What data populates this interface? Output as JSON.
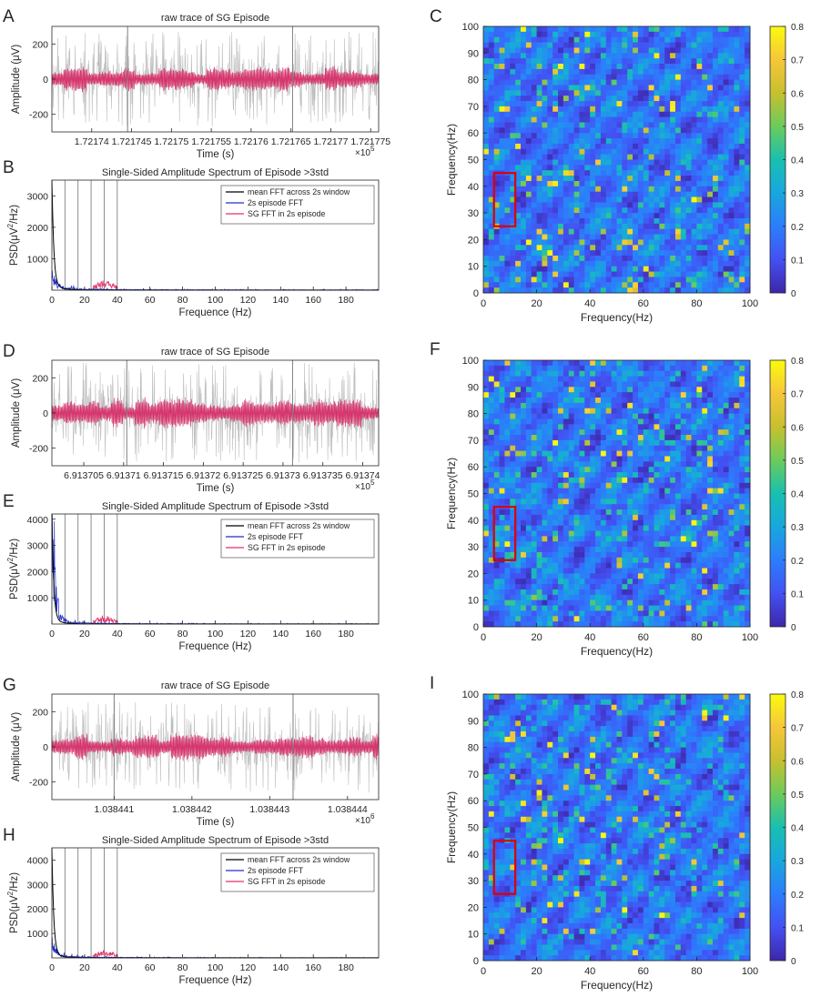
{
  "colors": {
    "gray_trace": "#bdbdbd",
    "pink_trace": "#d6336c",
    "mean_fft": "#000000",
    "episode_fft": "#1f2fcc",
    "sg_fft": "#e0306a",
    "roi_box": "#dd0000",
    "axis": "#262626",
    "vline": "#808080"
  },
  "chart_data": [
    {
      "id": "A",
      "panel_label": "A",
      "type": "line",
      "title": "raw trace of SG Episode",
      "xlabel": "Time (s)",
      "ylabel": "Amplitude (μV)",
      "exponent": "×10",
      "exponent_power": "5",
      "xlim": [
        1.721735,
        1.721776
      ],
      "ylim": [
        -300,
        300
      ],
      "xticks": [
        1.72174,
        1.721745,
        1.72175,
        1.721755,
        1.72176,
        1.721765,
        1.72177,
        1.721775
      ],
      "xtick_labels": [
        "1.72174",
        "1.721745",
        "1.72175",
        "1.721755",
        "1.72176",
        "1.721765",
        "1.72177",
        "1.721775"
      ],
      "yticks": [
        -200,
        0,
        200
      ],
      "ytick_labels": [
        "-200",
        "0",
        "200"
      ],
      "markers_x": [
        1.7217445,
        1.7217652
      ],
      "series": [
        {
          "name": "raw trace",
          "color": "#bdbdbd",
          "amplitude_uV": 270,
          "seed": 11
        },
        {
          "name": "SG band",
          "color": "#d6336c",
          "amplitude_uV": 60,
          "seed": 12
        }
      ]
    },
    {
      "id": "B",
      "panel_label": "B",
      "type": "line",
      "title": "Single-Sided Amplitude Spectrum of Episode >3std",
      "xlabel": "Frequence (Hz)",
      "ylabel_pre": "PSD(μV",
      "ylabel_sup": "2",
      "ylabel_post": "/Hz)",
      "xlim": [
        0,
        200
      ],
      "ylim": [
        0,
        3500
      ],
      "xticks": [
        0,
        20,
        40,
        60,
        80,
        100,
        120,
        140,
        160,
        180
      ],
      "xtick_labels": [
        "0",
        "20",
        "40",
        "60",
        "80",
        "100",
        "120",
        "140",
        "160",
        "180"
      ],
      "yticks": [
        1000,
        2000,
        3000
      ],
      "ytick_labels": [
        "1000",
        "2000",
        "3000"
      ],
      "vlines": [
        8,
        16,
        24,
        32,
        40
      ],
      "sg_band": [
        25,
        40
      ],
      "peak": 3500,
      "episode_peak": 500,
      "legend": [
        "mean FFT across 2s window",
        "2s episode FFT",
        "SG FFT in 2s episode"
      ],
      "legend_position": "top-right",
      "series": [
        {
          "name": "mean FFT across 2s window",
          "color": "#000000"
        },
        {
          "name": "2s episode FFT",
          "color": "#1f2fcc"
        },
        {
          "name": "SG FFT in 2s episode",
          "color": "#e0306a"
        }
      ]
    },
    {
      "id": "C",
      "panel_label": "C",
      "type": "heatmap",
      "xlabel": "Frequency(Hz)",
      "ylabel": "Frequency(Hz)",
      "xlim": [
        0,
        100
      ],
      "ylim": [
        0,
        100
      ],
      "xticks": [
        0,
        20,
        40,
        60,
        80,
        100
      ],
      "xtick_labels": [
        "0",
        "20",
        "40",
        "60",
        "80",
        "100"
      ],
      "yticks": [
        0,
        10,
        20,
        30,
        40,
        50,
        60,
        70,
        80,
        90,
        100
      ],
      "ytick_labels": [
        "0",
        "10",
        "20",
        "30",
        "40",
        "50",
        "60",
        "70",
        "80",
        "90",
        "100"
      ],
      "colorbar_range": [
        0,
        0.8
      ],
      "colorbar_ticks": [
        "0",
        "0.1",
        "0.2",
        "0.3",
        "0.4",
        "0.5",
        "0.6",
        "0.7",
        "0.8"
      ],
      "roi": {
        "x": [
          4,
          12
        ],
        "y": [
          25,
          45
        ]
      },
      "seed": 21
    },
    {
      "id": "D",
      "panel_label": "D",
      "type": "line",
      "title": "raw trace of SG Episode",
      "xlabel": "Time (s)",
      "ylabel": "Amplitude (μV)",
      "exponent": "×10",
      "exponent_power": "5",
      "xlim": [
        6.913701,
        6.913742
      ],
      "ylim": [
        -300,
        300
      ],
      "xticks": [
        6.913705,
        6.91371,
        6.913715,
        6.91372,
        6.913725,
        6.91373,
        6.913735,
        6.91374
      ],
      "xtick_labels": [
        "6.913705",
        "6.91371",
        "6.913715",
        "6.91372",
        "6.913725",
        "6.91373",
        "6.913735",
        "6.91374"
      ],
      "yticks": [
        -200,
        0,
        200
      ],
      "ytick_labels": [
        "-200",
        "0",
        "200"
      ],
      "markers_x": [
        6.9137104,
        6.9137312
      ],
      "series": [
        {
          "name": "raw trace",
          "color": "#bdbdbd",
          "amplitude_uV": 290,
          "seed": 31
        },
        {
          "name": "SG band",
          "color": "#d6336c",
          "amplitude_uV": 70,
          "seed": 32
        }
      ]
    },
    {
      "id": "E",
      "panel_label": "E",
      "type": "line",
      "title": "Single-Sided Amplitude Spectrum of Episode >3std",
      "xlabel": "Frequence (Hz)",
      "ylabel_pre": "PSD(μV",
      "ylabel_sup": "2",
      "ylabel_post": "/Hz)",
      "xlim": [
        0,
        200
      ],
      "ylim": [
        0,
        4200
      ],
      "xticks": [
        0,
        20,
        40,
        60,
        80,
        100,
        120,
        140,
        160,
        180
      ],
      "xtick_labels": [
        "0",
        "20",
        "40",
        "60",
        "80",
        "100",
        "120",
        "140",
        "160",
        "180"
      ],
      "yticks": [
        1000,
        2000,
        3000,
        4000
      ],
      "ytick_labels": [
        "1000",
        "2000",
        "3000",
        "4000"
      ],
      "vlines": [
        8,
        16,
        24,
        32,
        40
      ],
      "sg_band": [
        25,
        40
      ],
      "peak": 4050,
      "episode_peak": 3300,
      "legend": [
        "mean FFT across 2s window",
        "2s episode FFT",
        "SG FFT in 2s episode"
      ],
      "legend_position": "top-right",
      "series": [
        {
          "name": "mean FFT across 2s window",
          "color": "#000000"
        },
        {
          "name": "2s episode FFT",
          "color": "#1f2fcc"
        },
        {
          "name": "SG FFT in 2s episode",
          "color": "#e0306a"
        }
      ]
    },
    {
      "id": "F",
      "panel_label": "F",
      "type": "heatmap",
      "xlabel": "Frequency(Hz)",
      "ylabel": "Frequency(Hz)",
      "xlim": [
        0,
        100
      ],
      "ylim": [
        0,
        100
      ],
      "xticks": [
        0,
        20,
        40,
        60,
        80,
        100
      ],
      "xtick_labels": [
        "0",
        "20",
        "40",
        "60",
        "80",
        "100"
      ],
      "yticks": [
        0,
        10,
        20,
        30,
        40,
        50,
        60,
        70,
        80,
        90,
        100
      ],
      "ytick_labels": [
        "0",
        "10",
        "20",
        "30",
        "40",
        "50",
        "60",
        "70",
        "80",
        "90",
        "100"
      ],
      "colorbar_range": [
        0,
        0.8
      ],
      "colorbar_ticks": [
        "0",
        "0.1",
        "0.2",
        "0.3",
        "0.4",
        "0.5",
        "0.6",
        "0.7",
        "0.8"
      ],
      "roi": {
        "x": [
          4,
          12
        ],
        "y": [
          25,
          45
        ]
      },
      "seed": 41
    },
    {
      "id": "G",
      "panel_label": "G",
      "type": "line",
      "title": "raw trace of SG Episode",
      "xlabel": "Time (s)",
      "ylabel": "Amplitude (μV)",
      "exponent": "×10",
      "exponent_power": "6",
      "xlim": [
        1.0384402,
        1.0384444
      ],
      "ylim": [
        -300,
        300
      ],
      "xticks": [
        1.038441,
        1.038442,
        1.038443,
        1.038444
      ],
      "xtick_labels": [
        "1.038441",
        "1.038442",
        "1.038443",
        "1.038444"
      ],
      "yticks": [
        -200,
        0,
        200
      ],
      "ytick_labels": [
        "-200",
        "0",
        "200"
      ],
      "markers_x": [
        1.038441,
        1.0384433
      ],
      "series": [
        {
          "name": "raw trace",
          "color": "#bdbdbd",
          "amplitude_uV": 260,
          "seed": 51
        },
        {
          "name": "SG band",
          "color": "#d6336c",
          "amplitude_uV": 60,
          "seed": 52
        }
      ]
    },
    {
      "id": "H",
      "panel_label": "H",
      "type": "line",
      "title": "Single-Sided Amplitude Spectrum of Episode >3std",
      "xlabel": "Frequence (Hz)",
      "ylabel_pre": "PSD(μV",
      "ylabel_sup": "2",
      "ylabel_post": "/Hz)",
      "xlim": [
        0,
        200
      ],
      "ylim": [
        0,
        4500
      ],
      "xticks": [
        0,
        20,
        40,
        60,
        80,
        100,
        120,
        140,
        160,
        180
      ],
      "xtick_labels": [
        "0",
        "20",
        "40",
        "60",
        "80",
        "100",
        "120",
        "140",
        "160",
        "180"
      ],
      "yticks": [
        1000,
        2000,
        3000,
        4000
      ],
      "ytick_labels": [
        "1000",
        "2000",
        "3000",
        "4000"
      ],
      "vlines": [
        8,
        16,
        24,
        32,
        40
      ],
      "sg_band": [
        25,
        40
      ],
      "peak": 4450,
      "episode_peak": 700,
      "legend": [
        "mean FFT across 2s window",
        "2s episode FFT",
        "SG FFT in 2s episode"
      ],
      "legend_position": "top-right",
      "series": [
        {
          "name": "mean FFT across 2s window",
          "color": "#000000"
        },
        {
          "name": "2s episode FFT",
          "color": "#1f2fcc"
        },
        {
          "name": "SG FFT in 2s episode",
          "color": "#e0306a"
        }
      ]
    },
    {
      "id": "I",
      "panel_label": "I",
      "type": "heatmap",
      "xlabel": "Frequency(Hz)",
      "ylabel": "Frequency(Hz)",
      "xlim": [
        0,
        100
      ],
      "ylim": [
        0,
        100
      ],
      "xticks": [
        0,
        20,
        40,
        60,
        80,
        100
      ],
      "xtick_labels": [
        "0",
        "20",
        "40",
        "60",
        "80",
        "100"
      ],
      "yticks": [
        0,
        10,
        20,
        30,
        40,
        50,
        60,
        70,
        80,
        90,
        100
      ],
      "ytick_labels": [
        "0",
        "10",
        "20",
        "30",
        "40",
        "50",
        "60",
        "70",
        "80",
        "90",
        "100"
      ],
      "colorbar_range": [
        0,
        0.8
      ],
      "colorbar_ticks": [
        "0",
        "0.1",
        "0.2",
        "0.3",
        "0.4",
        "0.5",
        "0.6",
        "0.7",
        "0.8"
      ],
      "roi": {
        "x": [
          4,
          12
        ],
        "y": [
          25,
          45
        ]
      },
      "seed": 61
    }
  ]
}
